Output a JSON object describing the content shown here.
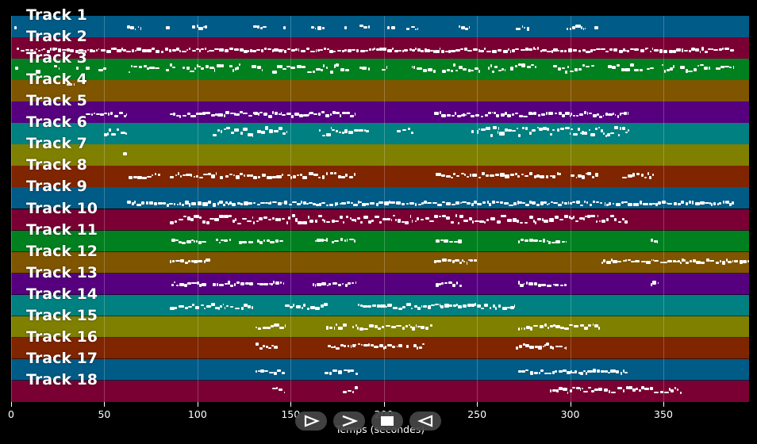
{
  "xaxis": {
    "label": "Temps (secondes)",
    "ticks": [
      "0",
      "50",
      "100",
      "150",
      "200",
      "250",
      "300",
      "350"
    ],
    "range": [
      0,
      396
    ]
  },
  "controls": [
    {
      "name": "play-icon"
    },
    {
      "name": "fast-forward-icon"
    },
    {
      "name": "stop-icon"
    },
    {
      "name": "rewind-icon"
    }
  ],
  "colors": [
    "#005b87",
    "#7a0033",
    "#00801f",
    "#7f5500",
    "#56007f",
    "#008080",
    "#7f7f00",
    "#7f2500"
  ],
  "tracks": [
    {
      "name": "Track 1",
      "color": "#005b87",
      "pitch": 0.55,
      "jitter": 0.15,
      "segs": [
        [
          1.5,
          3
        ],
        [
          62,
          70
        ],
        [
          83,
          85
        ],
        [
          97,
          105
        ],
        [
          130,
          137
        ],
        [
          146,
          147
        ],
        [
          161,
          168
        ],
        [
          179,
          180
        ],
        [
          187,
          193
        ],
        [
          202,
          203
        ],
        [
          204,
          206
        ],
        [
          212,
          218
        ],
        [
          240,
          246
        ],
        [
          271,
          278
        ],
        [
          298,
          308
        ],
        [
          313,
          315
        ]
      ]
    },
    {
      "name": "Track 2",
      "color": "#7a0033",
      "pitch": 0.6,
      "jitter": 0.15,
      "segs": [
        [
          3,
          388
        ]
      ]
    },
    {
      "name": "Track 3",
      "color": "#00801f",
      "pitch": 0.45,
      "jitter": 0.35,
      "segs": [
        [
          2,
          4
        ],
        [
          13,
          16
        ],
        [
          23,
          26
        ],
        [
          35,
          36
        ],
        [
          40,
          42
        ],
        [
          47,
          51
        ],
        [
          63,
          80
        ],
        [
          83,
          88
        ],
        [
          92,
          114
        ],
        [
          117,
          123
        ],
        [
          129,
          135
        ],
        [
          140,
          170
        ],
        [
          171,
          182
        ],
        [
          187,
          193
        ],
        [
          199,
          202
        ],
        [
          215,
          228
        ],
        [
          231,
          252
        ],
        [
          256,
          265
        ],
        [
          268,
          282
        ],
        [
          291,
          313
        ],
        [
          320,
          339
        ],
        [
          341,
          345
        ],
        [
          349,
          356
        ],
        [
          359,
          375
        ],
        [
          378,
          388
        ]
      ]
    },
    {
      "name": "Track 4",
      "color": "#7f5500",
      "pitch": 0.2,
      "jitter": 0.0,
      "segs": [
        [
          30,
          34
        ]
      ]
    },
    {
      "name": "Track 5",
      "color": "#56007f",
      "pitch": 0.6,
      "jitter": 0.2,
      "segs": [
        [
          40,
          45
        ],
        [
          45.5,
          62
        ],
        [
          85,
          115
        ],
        [
          115,
          145
        ],
        [
          145,
          160
        ],
        [
          160,
          185
        ],
        [
          227,
          256
        ],
        [
          256,
          280
        ],
        [
          280,
          300
        ],
        [
          300,
          331
        ]
      ]
    },
    {
      "name": "Track 6",
      "color": "#008080",
      "pitch": 0.4,
      "jitter": 0.4,
      "segs": [
        [
          50,
          62
        ],
        [
          108,
          130
        ],
        [
          132,
          148
        ],
        [
          165,
          172
        ],
        [
          172,
          192
        ],
        [
          207,
          216
        ],
        [
          247,
          248
        ],
        [
          250,
          262
        ],
        [
          262,
          272
        ],
        [
          272,
          300
        ],
        [
          300,
          332
        ]
      ]
    },
    {
      "name": "Track 7",
      "color": "#7f7f00",
      "pitch": 0.42,
      "jitter": 0.0,
      "segs": [
        [
          60,
          62
        ]
      ]
    },
    {
      "name": "Track 8",
      "color": "#7f2500",
      "pitch": 0.45,
      "jitter": 0.2,
      "segs": [
        [
          63,
          80
        ],
        [
          85,
          110
        ],
        [
          112,
          130
        ],
        [
          130,
          146
        ],
        [
          148,
          170
        ],
        [
          171,
          185
        ],
        [
          228,
          265
        ],
        [
          265,
          295
        ],
        [
          300,
          315
        ],
        [
          328,
          345
        ]
      ]
    },
    {
      "name": "Track 9",
      "color": "#005b87",
      "pitch": 0.75,
      "jitter": 0.15,
      "segs": [
        [
          62,
          388
        ]
      ]
    },
    {
      "name": "Track 10",
      "color": "#7a0033",
      "pitch": 0.5,
      "jitter": 0.35,
      "segs": [
        [
          85,
          130
        ],
        [
          130,
          300
        ],
        [
          300,
          331
        ]
      ]
    },
    {
      "name": "Track 11",
      "color": "#00801f",
      "pitch": 0.5,
      "jitter": 0.15,
      "segs": [
        [
          86,
          105
        ],
        [
          110,
          118
        ],
        [
          122,
          130
        ],
        [
          132,
          146
        ],
        [
          163,
          170
        ],
        [
          172,
          185
        ],
        [
          228,
          242
        ],
        [
          272,
          298
        ],
        [
          343,
          347
        ]
      ]
    },
    {
      "name": "Track 12",
      "color": "#7f5500",
      "pitch": 0.45,
      "jitter": 0.15,
      "segs": [
        [
          85,
          107
        ],
        [
          227,
          250
        ],
        [
          317,
          345
        ],
        [
          345,
          396
        ]
      ]
    },
    {
      "name": "Track 13",
      "color": "#56007f",
      "pitch": 0.5,
      "jitter": 0.15,
      "segs": [
        [
          86,
          105
        ],
        [
          108,
          130
        ],
        [
          132,
          146
        ],
        [
          162,
          185
        ],
        [
          228,
          242
        ],
        [
          272,
          298
        ],
        [
          343,
          347
        ]
      ]
    },
    {
      "name": "Track 14",
      "color": "#008080",
      "pitch": 0.55,
      "jitter": 0.2,
      "segs": [
        [
          85,
          130
        ],
        [
          147,
          170
        ],
        [
          186,
          270
        ]
      ]
    },
    {
      "name": "Track 15",
      "color": "#7f7f00",
      "pitch": 0.5,
      "jitter": 0.2,
      "segs": [
        [
          131,
          147
        ],
        [
          169,
          180
        ],
        [
          183,
          200
        ],
        [
          201,
          226
        ],
        [
          272,
          292
        ],
        [
          292,
          316
        ]
      ]
    },
    {
      "name": "Track 16",
      "color": "#7f2500",
      "pitch": 0.4,
      "jitter": 0.2,
      "segs": [
        [
          131,
          143
        ],
        [
          170,
          185
        ],
        [
          186,
          210
        ],
        [
          212,
          213
        ],
        [
          216,
          222
        ],
        [
          271,
          298
        ]
      ]
    },
    {
      "name": "Track 17",
      "color": "#005b87",
      "pitch": 0.6,
      "jitter": 0.15,
      "segs": [
        [
          131,
          147
        ],
        [
          168,
          186
        ],
        [
          272,
          300
        ],
        [
          300,
          331
        ]
      ]
    },
    {
      "name": "Track 18",
      "color": "#7a0033",
      "pitch": 0.45,
      "jitter": 0.25,
      "segs": [
        [
          140,
          147
        ],
        [
          178,
          186
        ],
        [
          289,
          315
        ],
        [
          315,
          340
        ],
        [
          340,
          360
        ]
      ]
    }
  ]
}
